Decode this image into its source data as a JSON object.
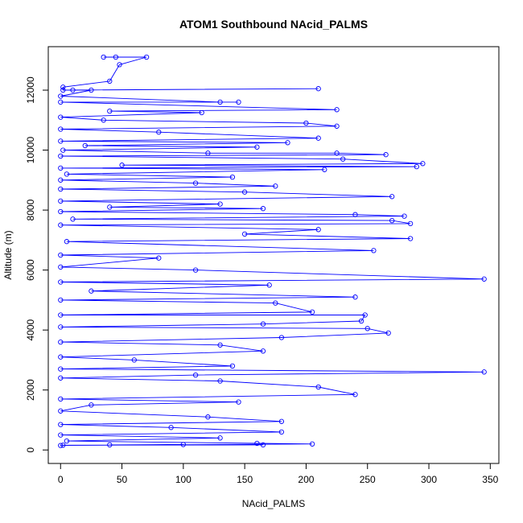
{
  "chart_data": {
    "type": "line",
    "title": "ATOM1 Southbound NAcid_PALMS",
    "xlabel": "NAcid_PALMS",
    "ylabel": "Altitude (m)",
    "xlim": [
      -10,
      357
    ],
    "ylim": [
      -450,
      13450
    ],
    "xticks": [
      0,
      50,
      100,
      150,
      200,
      250,
      300,
      350
    ],
    "yticks": [
      0,
      2000,
      4000,
      6000,
      8000,
      10000,
      12000
    ],
    "grid": false,
    "legend": "none",
    "marker": "open-circle",
    "color": "#0000ff",
    "series": [
      {
        "values": [
          [
            35,
            13100
          ],
          [
            45,
            13100
          ],
          [
            70,
            13100
          ],
          [
            48,
            12850
          ],
          [
            40,
            12300
          ],
          [
            2,
            12100
          ],
          [
            2,
            12000
          ],
          [
            210,
            12050
          ],
          [
            10,
            12000
          ],
          [
            25,
            12000
          ],
          [
            0,
            11800
          ],
          [
            130,
            11600
          ],
          [
            145,
            11600
          ],
          [
            0,
            11600
          ],
          [
            225,
            11350
          ],
          [
            40,
            11300
          ],
          [
            115,
            11250
          ],
          [
            0,
            11100
          ],
          [
            35,
            11000
          ],
          [
            200,
            10900
          ],
          [
            225,
            10800
          ],
          [
            0,
            10700
          ],
          [
            80,
            10600
          ],
          [
            210,
            10400
          ],
          [
            0,
            10300
          ],
          [
            185,
            10250
          ],
          [
            20,
            10150
          ],
          [
            160,
            10100
          ],
          [
            2,
            10000
          ],
          [
            120,
            9900
          ],
          [
            225,
            9900
          ],
          [
            265,
            9850
          ],
          [
            0,
            9800
          ],
          [
            230,
            9700
          ],
          [
            295,
            9550
          ],
          [
            50,
            9500
          ],
          [
            290,
            9450
          ],
          [
            0,
            9400
          ],
          [
            215,
            9350
          ],
          [
            5,
            9200
          ],
          [
            140,
            9100
          ],
          [
            0,
            9000
          ],
          [
            110,
            8900
          ],
          [
            175,
            8800
          ],
          [
            0,
            8700
          ],
          [
            150,
            8600
          ],
          [
            270,
            8450
          ],
          [
            0,
            8300
          ],
          [
            130,
            8200
          ],
          [
            40,
            8100
          ],
          [
            165,
            8050
          ],
          [
            0,
            7950
          ],
          [
            240,
            7850
          ],
          [
            280,
            7800
          ],
          [
            10,
            7700
          ],
          [
            270,
            7650
          ],
          [
            285,
            7550
          ],
          [
            0,
            7500
          ],
          [
            210,
            7350
          ],
          [
            150,
            7200
          ],
          [
            285,
            7050
          ],
          [
            5,
            6950
          ],
          [
            255,
            6650
          ],
          [
            0,
            6500
          ],
          [
            80,
            6400
          ],
          [
            0,
            6100
          ],
          [
            110,
            6000
          ],
          [
            345,
            5700
          ],
          [
            0,
            5600
          ],
          [
            170,
            5500
          ],
          [
            25,
            5300
          ],
          [
            240,
            5100
          ],
          [
            0,
            5000
          ],
          [
            175,
            4900
          ],
          [
            205,
            4600
          ],
          [
            0,
            4500
          ],
          [
            248,
            4500
          ],
          [
            245,
            4300
          ],
          [
            165,
            4200
          ],
          [
            0,
            4100
          ],
          [
            250,
            4050
          ],
          [
            267,
            3900
          ],
          [
            180,
            3750
          ],
          [
            0,
            3600
          ],
          [
            130,
            3500
          ],
          [
            165,
            3300
          ],
          [
            0,
            3100
          ],
          [
            60,
            3000
          ],
          [
            140,
            2800
          ],
          [
            0,
            2700
          ],
          [
            345,
            2600
          ],
          [
            110,
            2500
          ],
          [
            0,
            2400
          ],
          [
            130,
            2300
          ],
          [
            210,
            2100
          ],
          [
            240,
            1850
          ],
          [
            0,
            1700
          ],
          [
            145,
            1600
          ],
          [
            25,
            1500
          ],
          [
            0,
            1300
          ],
          [
            120,
            1100
          ],
          [
            180,
            950
          ],
          [
            0,
            850
          ],
          [
            90,
            750
          ],
          [
            180,
            600
          ],
          [
            0,
            500
          ],
          [
            130,
            400
          ],
          [
            5,
            300
          ],
          [
            160,
            220
          ],
          [
            205,
            200
          ],
          [
            0,
            150
          ],
          [
            100,
            180
          ],
          [
            40,
            170
          ],
          [
            165,
            170
          ],
          [
            2,
            160
          ]
        ]
      }
    ]
  }
}
